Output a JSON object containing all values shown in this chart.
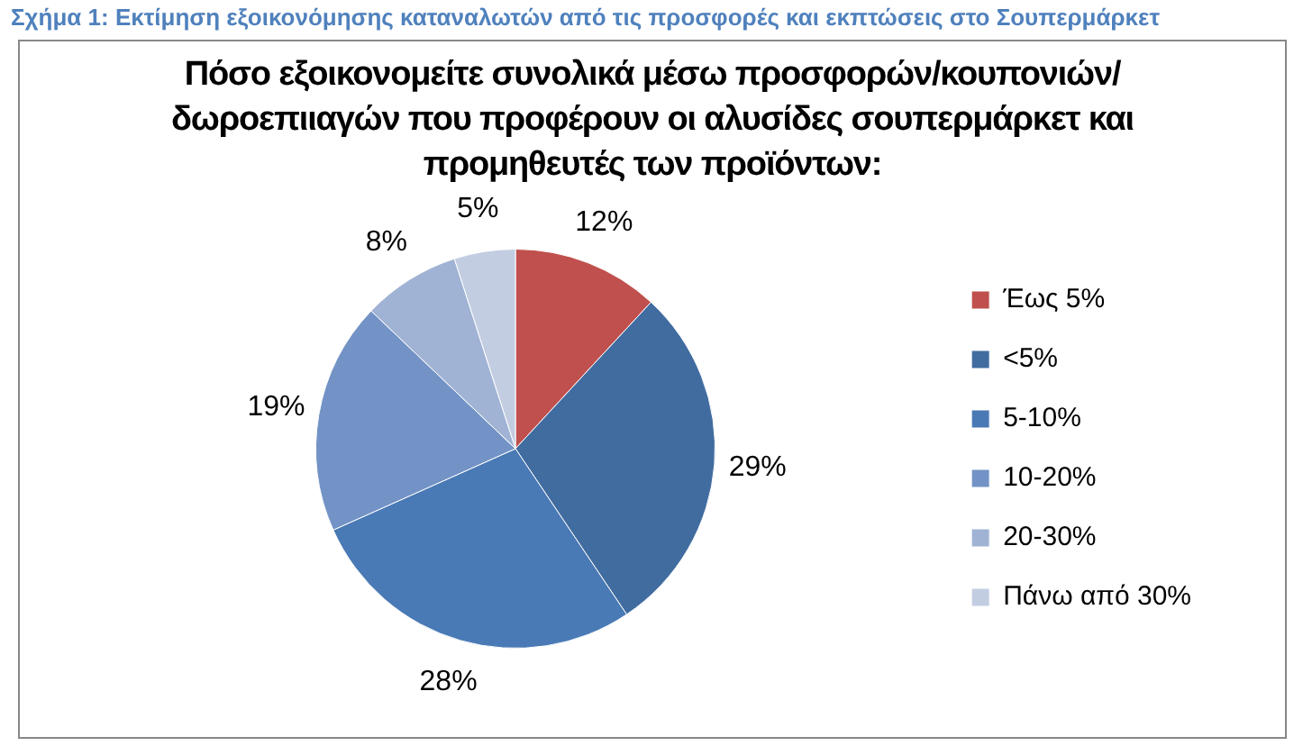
{
  "chart_data": {
    "type": "pie",
    "title": "Πόσο εξοικονομείτε συνολικά μέσω προσφορών/κουπονιών/δωροεπιιαγών που προφέρουν οι αλυσίδες σουπερμάρκετ και προμηθευτές των προϊόντων:",
    "annotations": [
      "Σχήμα 1: Εκτίμηση εξοικονόμησης καταναλωτών από τις προσφορές και εκπτώσεις στο Σουπερμάρκετ"
    ],
    "categories": [
      "Έως 5%",
      "<5%",
      "5-10%",
      "10-20%",
      "20-30%",
      "Πάνω από 30%"
    ],
    "values": [
      12,
      29,
      28,
      19,
      8,
      5
    ],
    "value_labels": [
      "12%",
      "29%",
      "28%",
      "19%",
      "8%",
      "5%"
    ],
    "colors": [
      "#c0504d",
      "#416ca0",
      "#4a7ab5",
      "#7393c6",
      "#a0b3d4",
      "#c3cde2"
    ],
    "legend": "right"
  }
}
